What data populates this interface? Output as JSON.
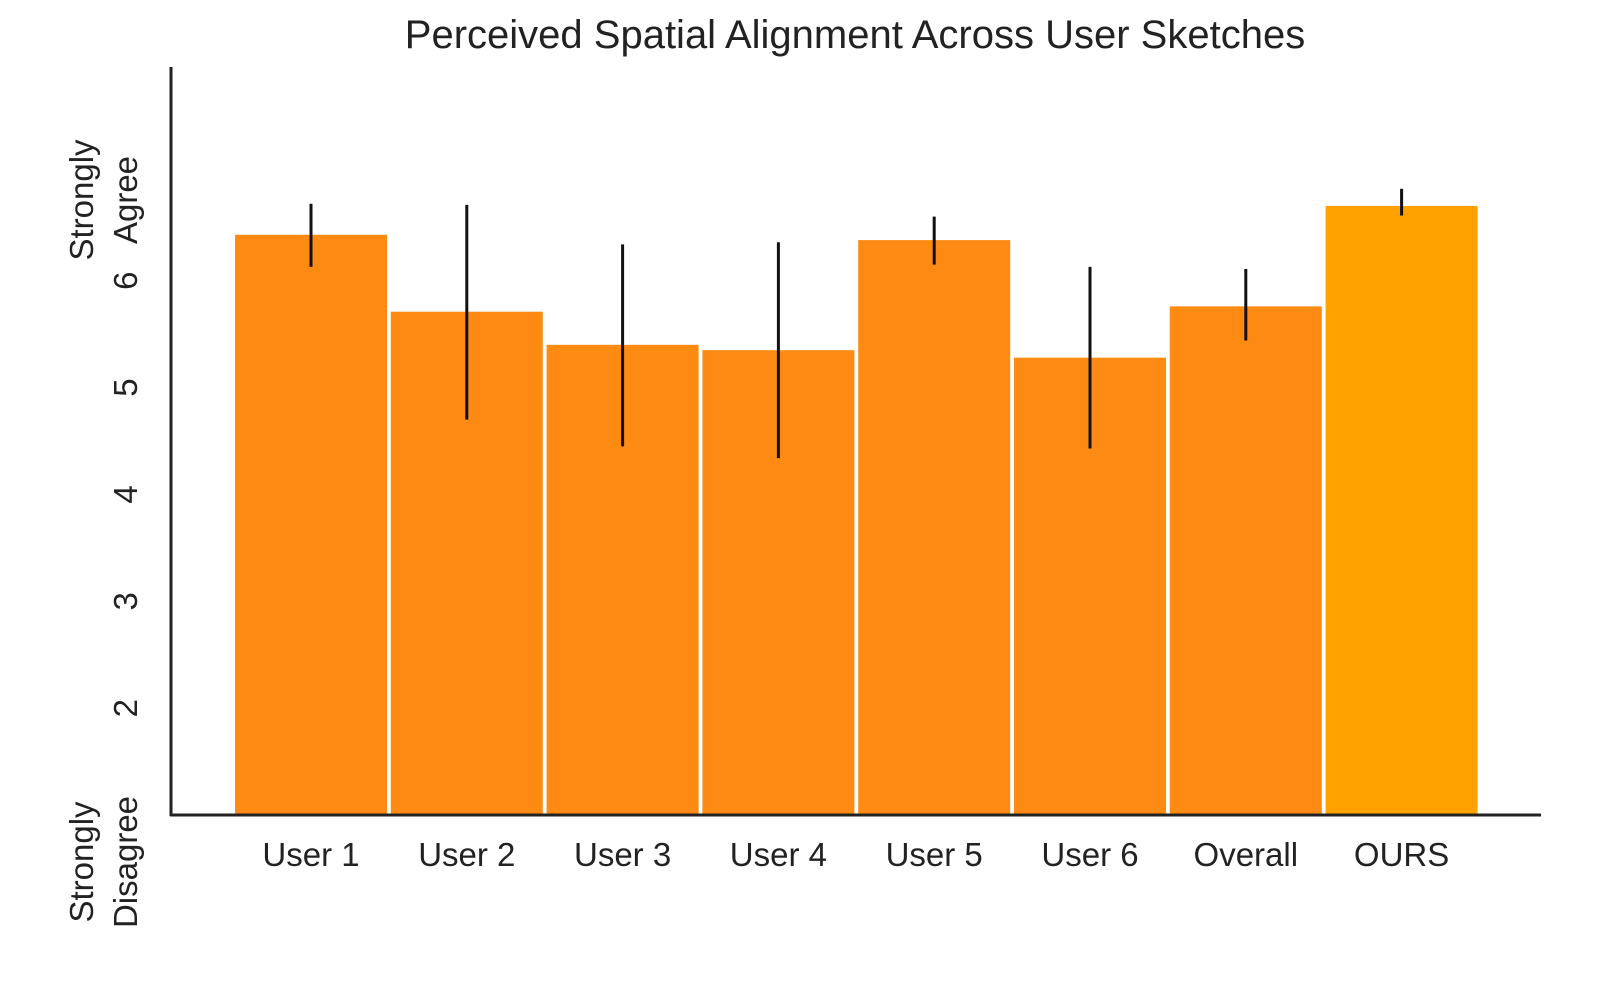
{
  "chart_data": {
    "type": "bar",
    "title": "Perceived Spatial Alignment Across User Sketches",
    "xlabel": "",
    "ylabel": "",
    "categories": [
      "User 1",
      "User 2",
      "User 3",
      "User 4",
      "User 5",
      "User 6",
      "Overall",
      "OURS"
    ],
    "values": [
      6.43,
      5.71,
      5.4,
      5.35,
      6.38,
      5.28,
      5.76,
      6.7
    ],
    "error_low": [
      6.13,
      4.7,
      4.45,
      4.34,
      6.15,
      4.43,
      5.44,
      6.61
    ],
    "error_high": [
      6.72,
      6.71,
      6.34,
      6.36,
      6.6,
      6.13,
      6.11,
      6.86
    ],
    "bar_colors": [
      "#fd8a12",
      "#fd8a12",
      "#fd8a12",
      "#fd8a12",
      "#fd8a12",
      "#fd8a12",
      "#fd8a12",
      "#ffa200"
    ],
    "ylim": [
      1,
      8
    ],
    "yticks": [
      {
        "value": 1,
        "label": "Strongly\nDisagree"
      },
      {
        "value": 2,
        "label": "2"
      },
      {
        "value": 3,
        "label": "3"
      },
      {
        "value": 4,
        "label": "4"
      },
      {
        "value": 5,
        "label": "5"
      },
      {
        "value": 6,
        "label": "6"
      }
    ],
    "ytop_label": "Strongly\nAgree",
    "grid": false,
    "legend": "none"
  }
}
